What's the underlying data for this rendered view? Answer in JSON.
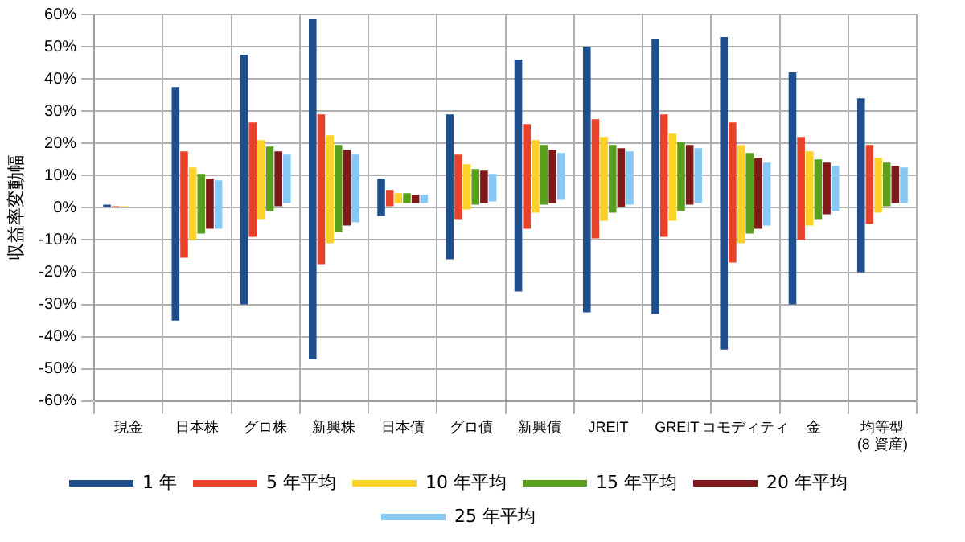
{
  "chart_data": {
    "type": "bar",
    "ylabel": "収益率変動幅",
    "categories": [
      "現金",
      "日本株",
      "グロ株",
      "新興株",
      "日本債",
      "グロ債",
      "新興債",
      "JREIT",
      "GREIT",
      "コモディティ",
      "金",
      "均等型\n(8 資産)"
    ],
    "series": [
      {
        "name": "1 年",
        "color": "#1f4e8c",
        "base": [
          0,
          -35,
          -30,
          -47,
          -2.5,
          -16,
          -26,
          -32.5,
          -33,
          -44,
          -30,
          -20
        ],
        "values": [
          1,
          72.5,
          77.5,
          105.5,
          11.5,
          45,
          72,
          82.5,
          85.5,
          97,
          72,
          54
        ]
      },
      {
        "name": "5 年平均",
        "color": "#e8432a",
        "base": [
          0,
          -15.5,
          -9,
          -17.5,
          0.5,
          -3.5,
          -6.5,
          -9.5,
          -9,
          -17,
          -10,
          -5
        ],
        "values": [
          0.5,
          33,
          35.5,
          46.5,
          5,
          20,
          32.5,
          37,
          38,
          43.5,
          32,
          24.5
        ]
      },
      {
        "name": "10 年平均",
        "color": "#fcd12a",
        "base": [
          0,
          -10,
          -3.5,
          -11,
          1.5,
          -0.5,
          -1.5,
          -4,
          -4,
          -11,
          -5.5,
          -1.5
        ],
        "values": [
          0.5,
          22.5,
          24.5,
          33.5,
          3,
          14,
          22.5,
          26,
          27,
          30.5,
          23,
          17
        ]
      },
      {
        "name": "15 年平均",
        "color": "#5a9e1e",
        "base": [
          null,
          -8,
          -1,
          -7.5,
          1.5,
          1,
          1,
          -1.5,
          -1,
          -8,
          -3.5,
          0.5
        ],
        "values": [
          null,
          18.5,
          20,
          27,
          3,
          11,
          18.5,
          21,
          21.5,
          25,
          18.5,
          13.5
        ]
      },
      {
        "name": "20 年平均",
        "color": "#7f1a1a",
        "base": [
          null,
          -6.5,
          0.5,
          -5.5,
          1.5,
          1.5,
          1.5,
          0,
          1,
          -6.5,
          -2,
          1.5
        ],
        "values": [
          null,
          15.5,
          17,
          23.5,
          2.5,
          10,
          16.5,
          18.5,
          18.5,
          22,
          16,
          11.5
        ]
      },
      {
        "name": "25 年平均",
        "color": "#88c8f5",
        "base": [
          null,
          -6.5,
          1.5,
          -4.5,
          1.5,
          2,
          2.5,
          1,
          1.5,
          -5.5,
          -1,
          1.5
        ],
        "values": [
          null,
          15,
          15,
          21,
          2.5,
          8.5,
          14.5,
          16.5,
          17,
          19.5,
          14,
          11
        ]
      }
    ],
    "ylim": [
      -60,
      60
    ],
    "yticks": [
      {
        "value": -60,
        "label": "-60%"
      },
      {
        "value": -50,
        "label": "-50%"
      },
      {
        "value": -40,
        "label": "-40%"
      },
      {
        "value": -30,
        "label": "-30%"
      },
      {
        "value": -20,
        "label": "-20%"
      },
      {
        "value": -10,
        "label": "-10%"
      },
      {
        "value": 0,
        "label": "0%"
      },
      {
        "value": 10,
        "label": "10%"
      },
      {
        "value": 20,
        "label": "20%"
      },
      {
        "value": 30,
        "label": "30%"
      },
      {
        "value": 40,
        "label": "40%"
      },
      {
        "value": 50,
        "label": "50%"
      },
      {
        "value": 60,
        "label": "60%"
      }
    ],
    "grid": true,
    "legend": "bottom"
  }
}
